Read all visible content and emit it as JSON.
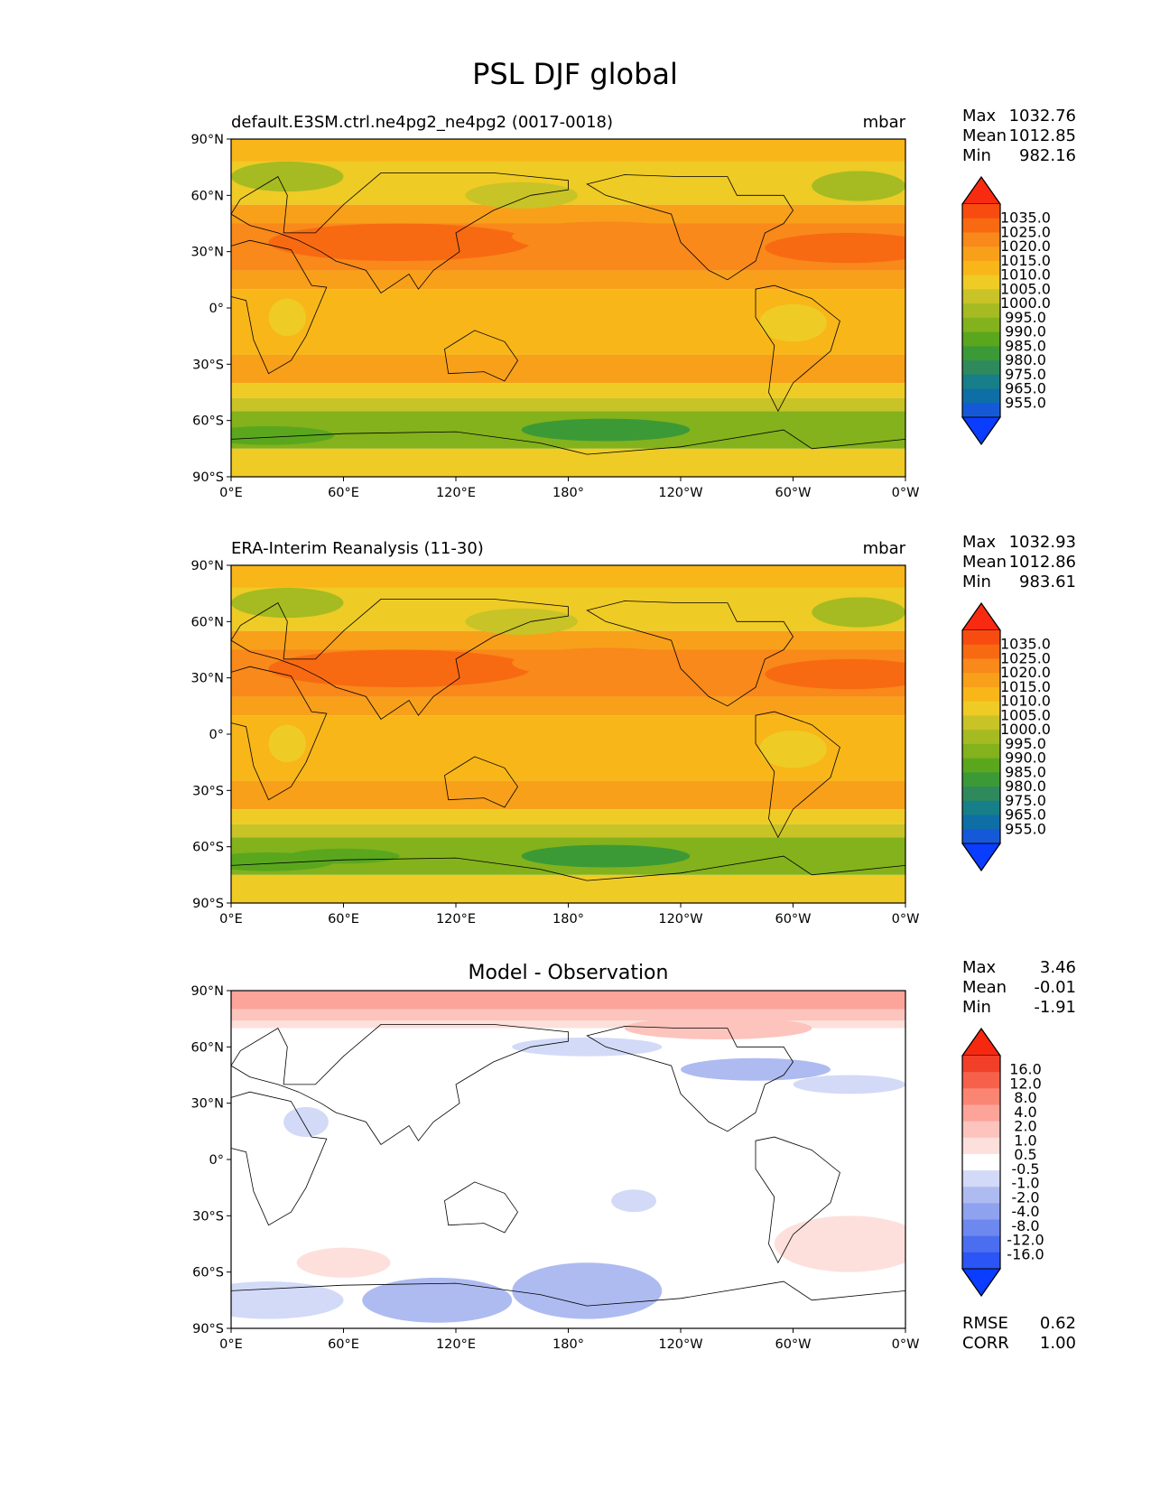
{
  "figure_title": "PSL DJF global",
  "colors": {
    "psl_levels": [
      "#0a3dff",
      "#1659d8",
      "#0d6fa5",
      "#167f89",
      "#2e8a5d",
      "#3c9a36",
      "#5aa71e",
      "#83b21c",
      "#a5bb21",
      "#c8c326",
      "#efcb25",
      "#f8b619",
      "#f8a01a",
      "#f8891a",
      "#f86a12",
      "#f84b10",
      "#f82a10"
    ],
    "diff_levels": [
      "#0a3dff",
      "#2b55f5",
      "#4b6ef0",
      "#6d88ee",
      "#8ea2ef",
      "#aebbf1",
      "#d2daf7",
      "#ffffff",
      "#fde0dc",
      "#fcc4bc",
      "#fca49a",
      "#fb8573",
      "#f6614c",
      "#f23f2a",
      "#f72810"
    ]
  },
  "chart_data": [
    {
      "type": "heatmap",
      "panel_title": "default.E3SM.ctrl.ne4pg2_ne4pg2 (0017-0018)",
      "units": "mbar",
      "x_ticks": [
        "0°E",
        "60°E",
        "120°E",
        "180°",
        "120°W",
        "60°W",
        "0°W"
      ],
      "y_ticks": [
        "90°N",
        "60°N",
        "30°N",
        "0°",
        "30°S",
        "60°S",
        "90°S"
      ],
      "xlim": [
        0,
        360
      ],
      "ylim": [
        -90,
        90
      ],
      "stats": {
        "Max": "1032.76",
        "Mean": "1012.85",
        "Min": "982.16"
      },
      "colorbar_labels": [
        "1035.0",
        "1025.0",
        "1020.0",
        "1015.0",
        "1010.0",
        "1005.0",
        "1000.0",
        "995.0",
        "990.0",
        "985.0",
        "980.0",
        "975.0",
        "965.0",
        "955.0"
      ]
    },
    {
      "type": "heatmap",
      "panel_title": "ERA-Interim Reanalysis (11-30)",
      "units": "mbar",
      "x_ticks": [
        "0°E",
        "60°E",
        "120°E",
        "180°",
        "120°W",
        "60°W",
        "0°W"
      ],
      "y_ticks": [
        "90°N",
        "60°N",
        "30°N",
        "0°",
        "30°S",
        "60°S",
        "90°S"
      ],
      "xlim": [
        0,
        360
      ],
      "ylim": [
        -90,
        90
      ],
      "stats": {
        "Max": "1032.93",
        "Mean": "1012.86",
        "Min": "983.61"
      },
      "colorbar_labels": [
        "1035.0",
        "1025.0",
        "1020.0",
        "1015.0",
        "1010.0",
        "1005.0",
        "1000.0",
        "995.0",
        "990.0",
        "985.0",
        "980.0",
        "975.0",
        "965.0",
        "955.0"
      ]
    },
    {
      "type": "heatmap",
      "panel_title": "Model - Observation",
      "units": "",
      "x_ticks": [
        "0°E",
        "60°E",
        "120°E",
        "180°",
        "120°W",
        "60°W",
        "0°W"
      ],
      "y_ticks": [
        "90°N",
        "60°N",
        "30°N",
        "0°",
        "30°S",
        "60°S",
        "90°S"
      ],
      "xlim": [
        0,
        360
      ],
      "ylim": [
        -90,
        90
      ],
      "stats": {
        "Max": "3.46",
        "Mean": "-0.01",
        "Min": "-1.91"
      },
      "colorbar_labels": [
        "16.0",
        "12.0",
        "8.0",
        "4.0",
        "2.0",
        "1.0",
        "0.5",
        "-0.5",
        "-1.0",
        "-2.0",
        "-4.0",
        "-8.0",
        "-12.0",
        "-16.0"
      ],
      "error_stats": {
        "RMSE": "0.62",
        "CORR": "1.00"
      }
    }
  ]
}
